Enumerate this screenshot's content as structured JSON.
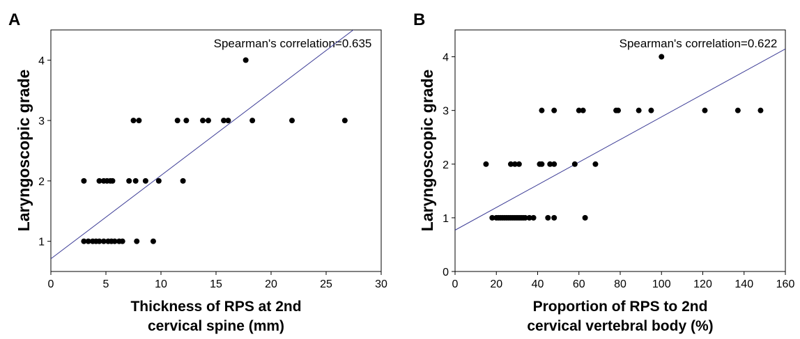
{
  "chart_data": [
    {
      "type": "scatter",
      "panel_label": "A",
      "annotation": "Spearman's correlation=0.635",
      "xlabel": [
        "Thickness of RPS at 2nd",
        "cervical spine (mm)"
      ],
      "ylabel": "Laryngoscopic grade",
      "xlim": [
        0,
        30
      ],
      "ylim": [
        0.5,
        4.5
      ],
      "xticks": [
        "0",
        "5",
        "10",
        "15",
        "20",
        "25",
        "30"
      ],
      "xtick_values": [
        0,
        5,
        10,
        15,
        20,
        25,
        30
      ],
      "yticks": [
        "1",
        "2",
        "3",
        "4"
      ],
      "ytick_values": [
        1,
        2,
        3,
        4
      ],
      "grid": false,
      "points": [
        [
          3.0,
          1
        ],
        [
          3.4,
          1
        ],
        [
          3.8,
          1
        ],
        [
          4.1,
          1
        ],
        [
          4.4,
          1
        ],
        [
          4.8,
          1
        ],
        [
          5.2,
          1
        ],
        [
          5.5,
          1
        ],
        [
          5.8,
          1
        ],
        [
          6.2,
          1
        ],
        [
          6.5,
          1
        ],
        [
          7.8,
          1
        ],
        [
          9.3,
          1
        ],
        [
          3.0,
          2
        ],
        [
          4.4,
          2
        ],
        [
          4.8,
          2
        ],
        [
          5.1,
          2
        ],
        [
          5.4,
          2
        ],
        [
          5.6,
          2
        ],
        [
          7.1,
          2
        ],
        [
          7.7,
          2
        ],
        [
          8.6,
          2
        ],
        [
          9.8,
          2
        ],
        [
          12.0,
          2
        ],
        [
          7.5,
          3
        ],
        [
          8.0,
          3
        ],
        [
          11.5,
          3
        ],
        [
          12.3,
          3
        ],
        [
          13.8,
          3
        ],
        [
          14.3,
          3
        ],
        [
          15.7,
          3
        ],
        [
          16.1,
          3
        ],
        [
          18.3,
          3
        ],
        [
          21.9,
          3
        ],
        [
          26.7,
          3
        ],
        [
          17.7,
          4
        ]
      ],
      "trendline": {
        "intercept": 0.71,
        "slope": 0.138,
        "color": "#3c3c96"
      },
      "point_color": "#000000"
    },
    {
      "type": "scatter",
      "panel_label": "B",
      "annotation": "Spearman's correlation=0.622",
      "xlabel": [
        "Proportion of RPS to 2nd",
        "cervical vertebral body (%)"
      ],
      "ylabel": "Laryngoscopic grade",
      "xlim": [
        0,
        160
      ],
      "ylim": [
        0,
        4.5
      ],
      "xticks": [
        "0",
        "20",
        "40",
        "60",
        "80",
        "100",
        "120",
        "140",
        "160"
      ],
      "xtick_values": [
        0,
        20,
        40,
        60,
        80,
        100,
        120,
        140,
        160
      ],
      "yticks": [
        "0",
        "1",
        "2",
        "3",
        "4"
      ],
      "ytick_values": [
        0,
        1,
        2,
        3,
        4
      ],
      "grid": false,
      "points": [
        [
          18,
          1
        ],
        [
          20,
          1
        ],
        [
          21,
          1
        ],
        [
          22,
          1
        ],
        [
          23,
          1
        ],
        [
          24,
          1
        ],
        [
          25,
          1
        ],
        [
          26,
          1
        ],
        [
          27,
          1
        ],
        [
          28,
          1
        ],
        [
          29,
          1
        ],
        [
          30,
          1
        ],
        [
          31,
          1
        ],
        [
          32,
          1
        ],
        [
          33,
          1
        ],
        [
          34,
          1
        ],
        [
          36,
          1
        ],
        [
          38,
          1
        ],
        [
          45,
          1
        ],
        [
          48,
          1
        ],
        [
          63,
          1
        ],
        [
          15,
          2
        ],
        [
          27,
          2
        ],
        [
          29,
          2
        ],
        [
          31,
          2
        ],
        [
          41,
          2
        ],
        [
          42,
          2
        ],
        [
          46,
          2
        ],
        [
          48,
          2
        ],
        [
          58,
          2
        ],
        [
          68,
          2
        ],
        [
          42,
          3
        ],
        [
          48,
          3
        ],
        [
          60,
          3
        ],
        [
          62,
          3
        ],
        [
          78,
          3
        ],
        [
          79,
          3
        ],
        [
          89,
          3
        ],
        [
          95,
          3
        ],
        [
          121,
          3
        ],
        [
          137,
          3
        ],
        [
          148,
          3
        ],
        [
          100,
          4
        ]
      ],
      "trendline": {
        "intercept": 0.77,
        "slope": 0.0211,
        "color": "#3c3c96"
      },
      "point_color": "#000000"
    }
  ]
}
